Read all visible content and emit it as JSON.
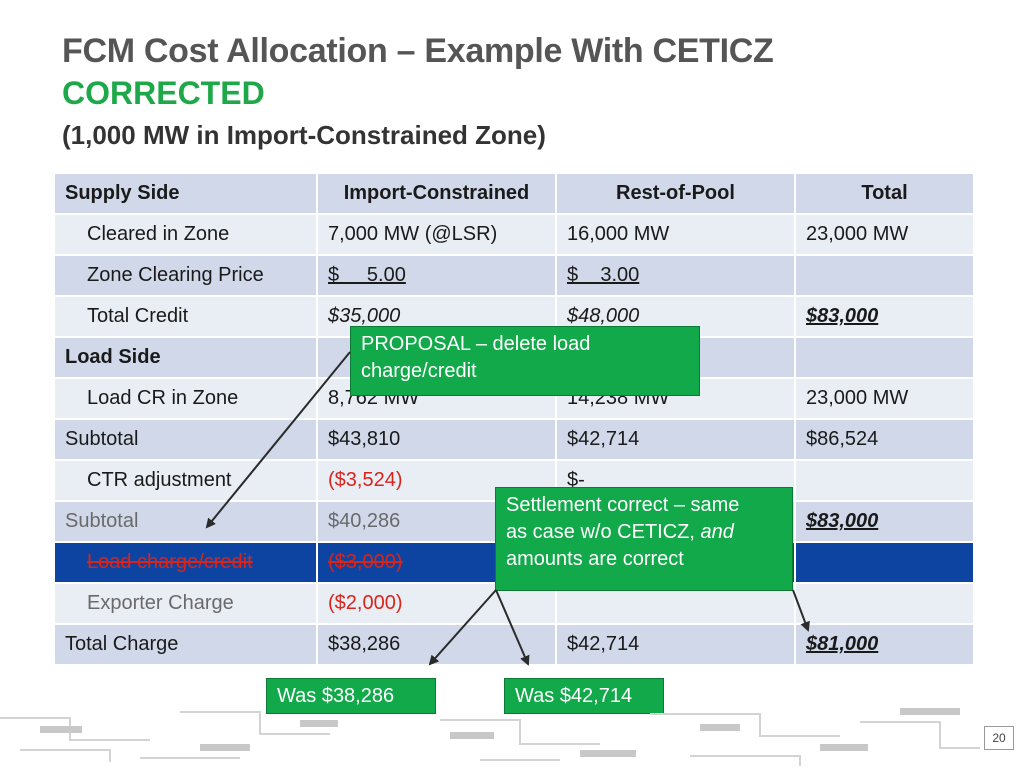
{
  "title": "FCM Cost Allocation – Example With CETICZ",
  "corrected_label": "CORRECTED",
  "subtitle": "(1,000 MW in Import-Constrained Zone)",
  "table": {
    "headers": [
      "Supply Side",
      "Import-Constrained",
      "Rest-of-Pool",
      "Total"
    ],
    "rows": [
      [
        "Cleared in Zone",
        "7,000 MW (@LSR)",
        "16,000 MW",
        "23,000 MW"
      ],
      [
        "Zone Clearing Price",
        "$     5.00",
        "$    3.00",
        ""
      ],
      [
        "Total Credit",
        "$35,000",
        "$48,000",
        "$83,000"
      ],
      [
        "Load Side",
        "",
        "",
        ""
      ],
      [
        "Load CR in Zone",
        "8,762 MW",
        "14,238 MW",
        "23,000 MW"
      ],
      [
        "Subtotal",
        "$43,810",
        "$42,714",
        "$86,524"
      ],
      [
        "CTR adjustment",
        "($3,524)",
        "$-",
        ""
      ],
      [
        "Subtotal",
        "$40,286",
        "",
        "$83,000"
      ],
      [
        "Load charge/credit",
        "($3,000)",
        "",
        ""
      ],
      [
        "Exporter Charge",
        "($2,000)",
        "",
        ""
      ],
      [
        "Total Charge",
        "$38,286",
        "$42,714",
        "$81,000"
      ]
    ]
  },
  "callouts": {
    "proposal_line1": "PROPOSAL – delete load",
    "proposal_line2": "charge/credit",
    "settlement_line1": "Settlement correct – same",
    "settlement_line2_a": "as case w/o CETICZ, ",
    "settlement_line2_b": "and",
    "settlement_line3": "amounts  are correct",
    "was_import": "Was $38,286",
    "was_rop": "Was $42,714"
  },
  "page_number": "20",
  "colors": {
    "title_gray": "#555555",
    "corrected_green": "#1ea84a",
    "row_dark": "#d0d8e9",
    "row_light": "#e9edf4",
    "highlight_blue": "#0e44a1",
    "negative_red": "#d8251c",
    "callout_green": "#12a94a"
  }
}
